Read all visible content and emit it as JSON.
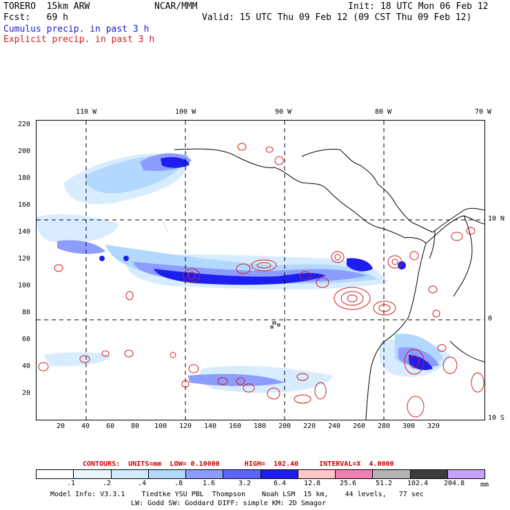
{
  "header": {
    "model": "TORERO  15km ARW",
    "center": "NCAR/MMM",
    "init": "Init: 18 UTC Mon 06 Feb 12",
    "fcst": "Fcst:   69 h",
    "valid": "Valid: 15 UTC Thu 09 Feb 12 (09 CST Thu 09 Feb 12)",
    "line_cumulus": "Cumulus precip. in past 3 h",
    "line_explicit": "Explicit precip. in past 3 h"
  },
  "colors": {
    "cumulus": "#1c1cc8",
    "explicit": "#d41c1c",
    "contour_label": "#c80000",
    "legend": [
      "#ffffff",
      "#eaf6ff",
      "#d0eaff",
      "#b2d8ff",
      "#8c9cff",
      "#5a64ff",
      "#1e1ef0",
      "#ffc8c8",
      "#f080b4",
      "#b4b4b4",
      "#3c3c3c",
      "#c8a0ff"
    ]
  },
  "map": {
    "lon_labels": [
      "110 W",
      "100 W",
      "90 W",
      "80 W",
      "70 W"
    ],
    "lat_labels": [
      "10 N",
      "0",
      "10 S"
    ],
    "x_ticks": [
      "20",
      "40",
      "60",
      "80",
      "100",
      "120",
      "140",
      "160",
      "180",
      "200",
      "220",
      "240",
      "260",
      "280",
      "300",
      "320"
    ],
    "y_ticks": [
      "220",
      "200",
      "180",
      "160",
      "140",
      "120",
      "100",
      "80",
      "60",
      "40",
      "20"
    ]
  },
  "contours": {
    "text": "CONTOURS:  UNITS=mm  LOW= 0.10000      HIGH=  102.40     INTERVAL=X  4.0000"
  },
  "legend": {
    "labels": [
      ".1",
      ".2",
      ".4",
      ".8",
      "1.6",
      "3.2",
      "6.4",
      "12.8",
      "25.6",
      "51.2",
      "102.4",
      "204.8"
    ],
    "units": "mm"
  },
  "footer": {
    "line1": "Model Info: V3.3.1    Tiedtke YSU PBL  Thompson    Noah LSM  15 km,    44 levels,   77 sec",
    "line2": "LW: Godd SW: Goddard DIFF: simple KM: 2D Smagor"
  }
}
